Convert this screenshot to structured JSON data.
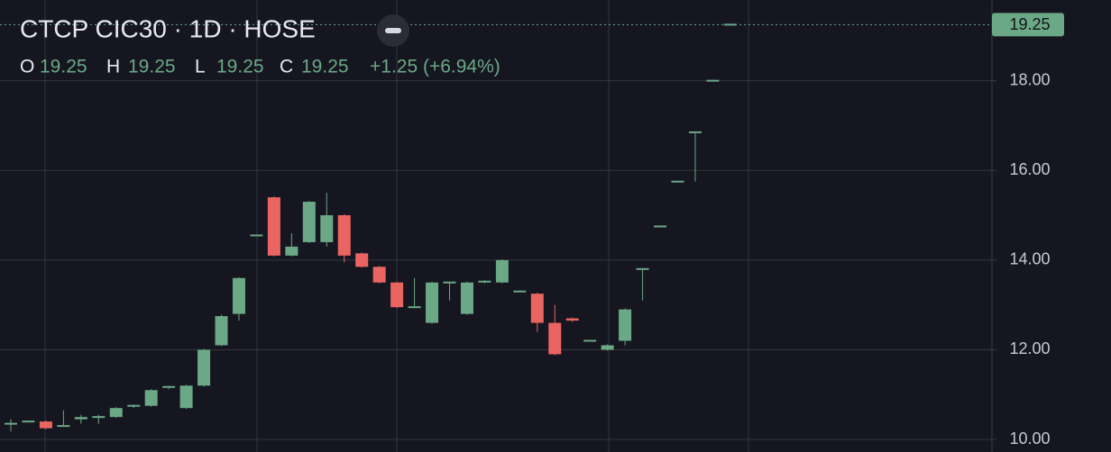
{
  "chart_data": {
    "type": "candlestick",
    "title": "CTCP CIC30 · 1D · HOSE",
    "ohlc_labels": [
      "O",
      "H",
      "L",
      "C"
    ],
    "ohlc_values": [
      19.25,
      19.25,
      19.25,
      19.25
    ],
    "change": "+1.25 (+6.94%)",
    "open": [
      10.35,
      10.4,
      10.4,
      10.3,
      10.45,
      10.5,
      10.5,
      10.72,
      10.75,
      11.15,
      10.7,
      11.2,
      12.1,
      12.8,
      14.55,
      15.4,
      14.1,
      14.4,
      14.4,
      15.0,
      14.15,
      13.85,
      13.5,
      12.95,
      12.6,
      13.5,
      12.8,
      13.5,
      13.5,
      13.3,
      13.25,
      12.6,
      12.7,
      12.2,
      12.0,
      12.2,
      13.8,
      14.75,
      15.75,
      16.85,
      18.0,
      19.25
    ],
    "high": [
      10.45,
      10.42,
      10.42,
      10.65,
      10.55,
      10.55,
      10.72,
      10.78,
      11.12,
      11.2,
      11.22,
      12.02,
      12.78,
      13.62,
      14.57,
      15.42,
      14.6,
      15.32,
      15.5,
      15.02,
      14.17,
      13.87,
      13.52,
      13.6,
      13.52,
      13.52,
      13.52,
      13.55,
      14.02,
      13.32,
      13.27,
      13.0,
      12.72,
      12.22,
      12.12,
      12.92,
      13.82,
      14.77,
      15.77,
      16.87,
      18.02,
      19.27
    ],
    "low": [
      10.18,
      10.38,
      10.23,
      10.28,
      10.35,
      10.35,
      10.48,
      10.7,
      10.73,
      11.12,
      10.68,
      11.18,
      12.08,
      12.65,
      14.53,
      14.08,
      14.08,
      14.38,
      14.3,
      13.95,
      13.83,
      13.48,
      12.93,
      12.93,
      12.58,
      13.1,
      12.78,
      13.48,
      13.48,
      13.28,
      12.4,
      11.88,
      12.62,
      12.18,
      11.98,
      12.1,
      13.1,
      14.73,
      15.73,
      15.75,
      17.98,
      19.23
    ],
    "close": [
      10.35,
      10.4,
      10.25,
      10.3,
      10.5,
      10.5,
      10.7,
      10.75,
      11.1,
      11.17,
      11.2,
      12.0,
      12.75,
      13.6,
      14.55,
      14.1,
      14.3,
      15.3,
      15.0,
      14.1,
      13.85,
      13.5,
      12.95,
      12.95,
      13.5,
      13.5,
      13.5,
      13.52,
      14.0,
      13.3,
      12.6,
      11.9,
      12.65,
      12.2,
      12.1,
      12.9,
      13.8,
      14.75,
      15.75,
      16.85,
      18.0,
      19.25
    ],
    "up_color": "#6aa886",
    "down_color": "#ea6561",
    "ylim": [
      9.72,
      19.8
    ],
    "yticks": [
      {
        "value": 10,
        "label": "10.00"
      },
      {
        "value": 12,
        "label": "12.00"
      },
      {
        "value": 14,
        "label": "14.00"
      },
      {
        "value": 16,
        "label": "16.00"
      },
      {
        "value": 18,
        "label": "18.00"
      }
    ],
    "grid": true
  }
}
